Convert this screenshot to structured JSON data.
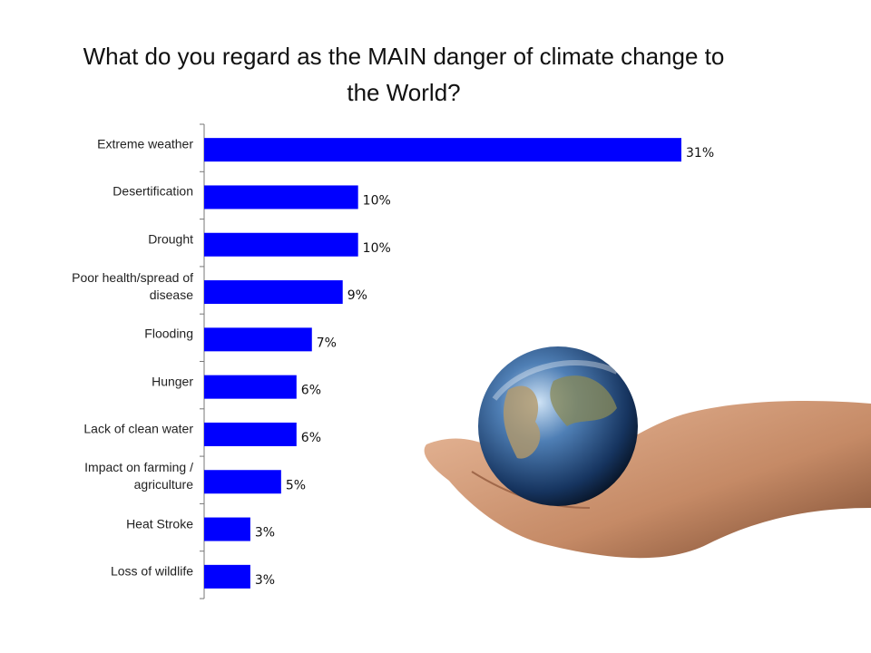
{
  "chart_data": {
    "type": "bar",
    "orientation": "horizontal",
    "title": "What do you regard as the MAIN danger of climate change to the World?",
    "categories": [
      "Extreme weather",
      "Desertification",
      "Drought",
      "Poor health/spread of disease",
      "Flooding",
      "Hunger",
      "Lack of clean water",
      "Impact on farming / agriculture",
      "Heat Stroke",
      "Loss of wildlife"
    ],
    "values": [
      31,
      10,
      10,
      9,
      7,
      6,
      6,
      5,
      3,
      3
    ],
    "value_labels": [
      "31%",
      "10%",
      "10%",
      "9%",
      "7%",
      "6%",
      "6%",
      "5%",
      "3%",
      "3%"
    ],
    "color": "#0000ff"
  }
}
